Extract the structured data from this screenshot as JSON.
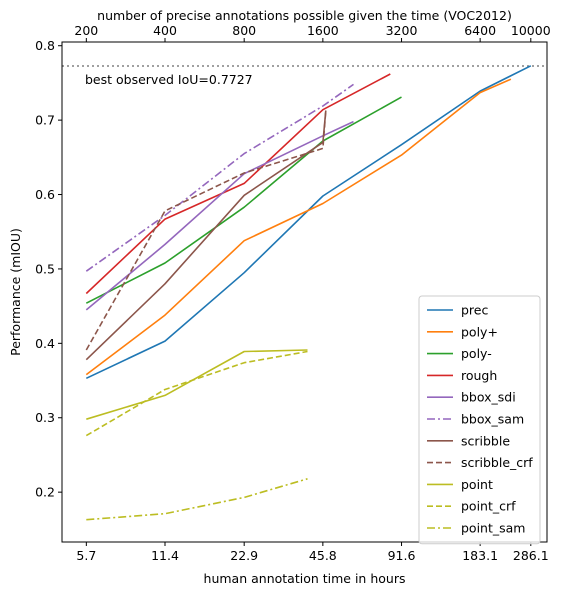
{
  "chart_data": {
    "type": "line",
    "xlabel": "human annotation time in hours",
    "ylabel": "Performance (mIOU)",
    "top_xlabel": "number of precise annotations possible given the time (VOC2012)",
    "x_scale": "log",
    "xlim": [
      4.6,
      330
    ],
    "ylim": [
      0.133,
      0.805
    ],
    "x_ticks": [
      5.7,
      11.4,
      22.9,
      45.8,
      91.6,
      183.1,
      286.1
    ],
    "x_tick_labels": [
      "5.7",
      "11.4",
      "22.9",
      "45.8",
      "91.6",
      "183.1",
      "286.1"
    ],
    "top_x_ticks": [
      5.7,
      11.4,
      22.9,
      45.8,
      91.6,
      183.1,
      286.1
    ],
    "top_x_tick_labels": [
      "200",
      "400",
      "800",
      "1600",
      "3200",
      "6400",
      "10000"
    ],
    "y_ticks": [
      0.2,
      0.3,
      0.4,
      0.5,
      0.6,
      0.7,
      0.8
    ],
    "y_tick_labels": [
      "0.2",
      "0.3",
      "0.4",
      "0.5",
      "0.6",
      "0.7",
      "0.8"
    ],
    "grid": false,
    "legend_position": "bottom-right",
    "reference_line": {
      "y": 0.7727,
      "label": "best observed IoU=0.7727",
      "color": "#808080",
      "style": "dotted"
    },
    "series": [
      {
        "name": "prec",
        "color": "#1f77b4",
        "dash": "solid",
        "x": [
          5.7,
          11.4,
          22.9,
          45.8,
          91.6,
          183.1,
          286.1
        ],
        "y": [
          0.353,
          0.403,
          0.495,
          0.598,
          0.667,
          0.739,
          0.773
        ]
      },
      {
        "name": "poly+",
        "color": "#ff7f0e",
        "dash": "solid",
        "x": [
          5.7,
          11.4,
          22.9,
          45.8,
          91.6,
          183.1,
          240.0
        ],
        "y": [
          0.358,
          0.438,
          0.538,
          0.588,
          0.653,
          0.737,
          0.755
        ]
      },
      {
        "name": "poly-",
        "color": "#2ca02c",
        "dash": "solid",
        "x": [
          5.7,
          11.4,
          22.9,
          45.8,
          91.6
        ],
        "y": [
          0.454,
          0.508,
          0.583,
          0.672,
          0.731
        ]
      },
      {
        "name": "rough",
        "color": "#d62728",
        "dash": "solid",
        "x": [
          5.7,
          11.4,
          22.9,
          45.8,
          83.0
        ],
        "y": [
          0.467,
          0.567,
          0.615,
          0.714,
          0.762
        ]
      },
      {
        "name": "bbox_sdi",
        "color": "#9467bd",
        "dash": "solid",
        "x": [
          5.7,
          11.4,
          22.9,
          45.8,
          60.0
        ],
        "y": [
          0.445,
          0.533,
          0.628,
          0.679,
          0.698
        ]
      },
      {
        "name": "bbox_sam",
        "color": "#9467bd",
        "dash": "dashdot",
        "x": [
          5.7,
          11.4,
          22.9,
          45.8,
          60.0
        ],
        "y": [
          0.497,
          0.572,
          0.655,
          0.719,
          0.748
        ]
      },
      {
        "name": "scribble",
        "color": "#8c564b",
        "dash": "solid",
        "x": [
          5.7,
          11.4,
          22.9,
          45.8,
          47.0
        ],
        "y": [
          0.378,
          0.48,
          0.599,
          0.67,
          0.713
        ]
      },
      {
        "name": "scribble_crf",
        "color": "#8c564b",
        "dash": "dashed",
        "x": [
          5.7,
          11.4,
          22.9,
          45.8,
          47.0
        ],
        "y": [
          0.391,
          0.578,
          0.629,
          0.662,
          0.713
        ]
      },
      {
        "name": "point",
        "color": "#bcbd22",
        "dash": "solid",
        "x": [
          5.7,
          11.4,
          22.9,
          40.0
        ],
        "y": [
          0.298,
          0.33,
          0.389,
          0.391
        ]
      },
      {
        "name": "point_crf",
        "color": "#bcbd22",
        "dash": "dashed",
        "x": [
          5.7,
          11.4,
          22.9,
          40.0
        ],
        "y": [
          0.276,
          0.338,
          0.374,
          0.389
        ]
      },
      {
        "name": "point_sam",
        "color": "#bcbd22",
        "dash": "dashdot",
        "x": [
          5.7,
          11.4,
          22.9,
          40.0
        ],
        "y": [
          0.163,
          0.171,
          0.193,
          0.218
        ]
      }
    ]
  }
}
